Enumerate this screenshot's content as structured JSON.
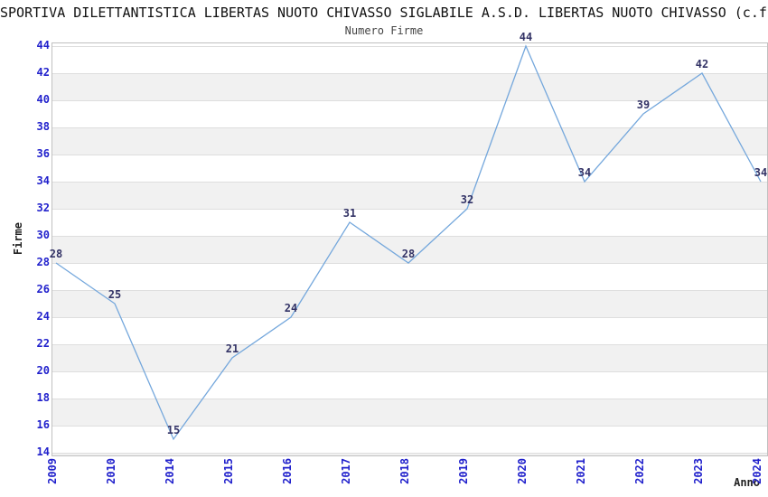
{
  "title": "SPORTIVA DILETTANTISTICA LIBERTAS NUOTO CHIVASSO SIGLABILE A.S.D. LIBERTAS NUOTO CHIVASSO (c.f",
  "chart_data": {
    "type": "line",
    "subtitle": "Numero Firme",
    "xlabel": "Anno",
    "ylabel": "Firme",
    "categories": [
      "2009",
      "2010",
      "2014",
      "2015",
      "2016",
      "2017",
      "2018",
      "2019",
      "2020",
      "2021",
      "2022",
      "2023",
      "2024"
    ],
    "values": [
      28,
      25,
      15,
      21,
      24,
      31,
      28,
      32,
      44,
      34,
      39,
      42,
      34
    ],
    "ylim": [
      14,
      44
    ],
    "ytick_step": 2,
    "grid": "horizontal-bands",
    "legend": "none",
    "colors": {
      "line": "#74a7dc",
      "tick_label": "#2121cc",
      "data_label": "#333366",
      "band": "#f1f1f1",
      "gridline": "#dedede",
      "border": "#c0c0c0",
      "title": "#111111",
      "subtitle": "#444444"
    }
  }
}
